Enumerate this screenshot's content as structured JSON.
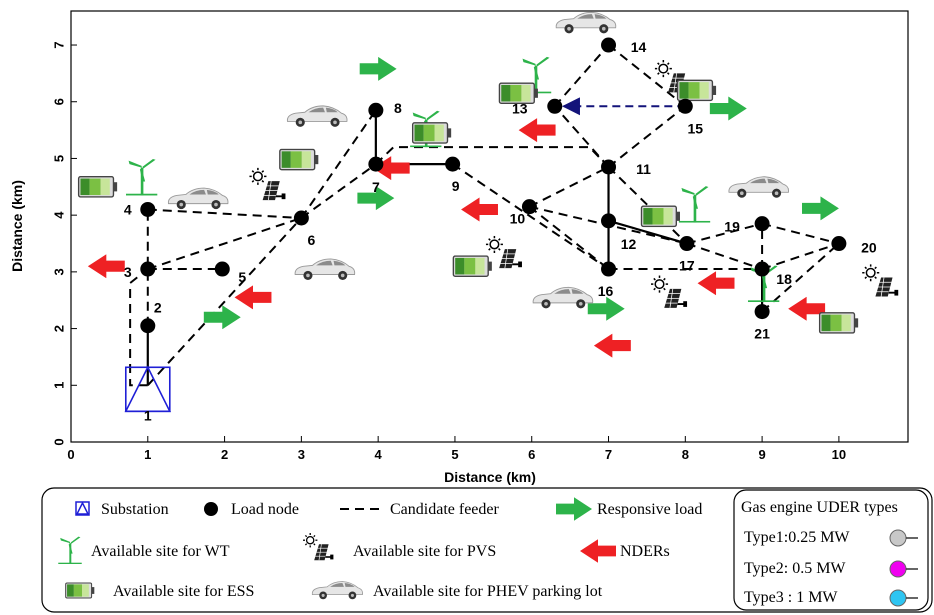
{
  "axes": {
    "xlabel": "Distance (km)",
    "ylabel": "Distance (km)",
    "xticks": [
      "0",
      "1",
      "2",
      "3",
      "4",
      "5",
      "6",
      "7",
      "8",
      "9",
      "10"
    ],
    "yticks": [
      "0",
      "1",
      "2",
      "3",
      "4",
      "5",
      "6",
      "7"
    ],
    "xlim": [
      0,
      10.9
    ],
    "ylim": [
      0,
      7.6
    ]
  },
  "nodes": [
    {
      "id": "1",
      "x": 1.0,
      "y": 1.0,
      "kind": "substation"
    },
    {
      "id": "2",
      "x": 1.0,
      "y": 2.05,
      "kind": "load"
    },
    {
      "id": "3",
      "x": 1.0,
      "y": 3.05,
      "kind": "load"
    },
    {
      "id": "4",
      "x": 1.0,
      "y": 4.1,
      "kind": "load"
    },
    {
      "id": "5",
      "x": 1.97,
      "y": 3.05,
      "kind": "load"
    },
    {
      "id": "6",
      "x": 3.0,
      "y": 3.95,
      "kind": "load"
    },
    {
      "id": "7",
      "x": 3.97,
      "y": 4.9,
      "kind": "load"
    },
    {
      "id": "8",
      "x": 3.97,
      "y": 5.85,
      "kind": "load"
    },
    {
      "id": "9",
      "x": 4.97,
      "y": 4.9,
      "kind": "load"
    },
    {
      "id": "10",
      "x": 5.97,
      "y": 4.15,
      "kind": "load"
    },
    {
      "id": "11",
      "x": 7.0,
      "y": 4.85,
      "kind": "load"
    },
    {
      "id": "12",
      "x": 7.0,
      "y": 3.9,
      "kind": "load"
    },
    {
      "id": "13",
      "x": 6.3,
      "y": 5.92,
      "kind": "load"
    },
    {
      "id": "14",
      "x": 7.0,
      "y": 7.0,
      "kind": "load"
    },
    {
      "id": "15",
      "x": 8.0,
      "y": 5.92,
      "kind": "load"
    },
    {
      "id": "16",
      "x": 7.0,
      "y": 3.05,
      "kind": "load"
    },
    {
      "id": "17",
      "x": 8.02,
      "y": 3.5,
      "kind": "load"
    },
    {
      "id": "18",
      "x": 9.0,
      "y": 3.05,
      "kind": "load"
    },
    {
      "id": "19",
      "x": 9.0,
      "y": 3.85,
      "kind": "load"
    },
    {
      "id": "20",
      "x": 10.0,
      "y": 3.5,
      "kind": "load"
    },
    {
      "id": "21",
      "x": 9.0,
      "y": 2.3,
      "kind": "load"
    }
  ],
  "feeders": [
    {
      "from": "1",
      "to": "2",
      "style": "solid"
    },
    {
      "from": "1",
      "to": "3",
      "style": "dashed",
      "via": "left"
    },
    {
      "from": "2",
      "to": "4",
      "style": "dashed"
    },
    {
      "from": "1",
      "to": "6",
      "style": "dashed"
    },
    {
      "from": "3",
      "to": "5",
      "style": "dashed"
    },
    {
      "from": "3",
      "to": "6",
      "style": "dashed"
    },
    {
      "from": "4",
      "to": "6",
      "style": "dashed"
    },
    {
      "from": "6",
      "to": "7",
      "style": "dashed"
    },
    {
      "from": "6",
      "to": "8",
      "style": "dashed"
    },
    {
      "from": "7",
      "to": "8",
      "style": "solid"
    },
    {
      "from": "7",
      "to": "9",
      "style": "solid"
    },
    {
      "from": "9",
      "to": "16",
      "style": "dashed"
    },
    {
      "from": "7",
      "to": "11",
      "style": "dashed",
      "via": "top"
    },
    {
      "from": "10",
      "to": "11",
      "style": "dashed"
    },
    {
      "from": "10",
      "to": "17",
      "style": "dashed"
    },
    {
      "from": "10",
      "to": "16",
      "style": "dashed"
    },
    {
      "from": "11",
      "to": "12",
      "style": "solid"
    },
    {
      "from": "12",
      "to": "16",
      "style": "solid"
    },
    {
      "from": "11",
      "to": "13",
      "style": "dashed"
    },
    {
      "from": "11",
      "to": "15",
      "style": "dashed"
    },
    {
      "from": "11",
      "to": "17",
      "style": "dashed"
    },
    {
      "from": "13",
      "to": "14",
      "style": "dashed"
    },
    {
      "from": "14",
      "to": "15",
      "style": "dashed"
    },
    {
      "from": "15",
      "to": "13",
      "style": "arrow-blue"
    },
    {
      "from": "12",
      "to": "17",
      "style": "solid"
    },
    {
      "from": "16",
      "to": "18",
      "style": "dashed"
    },
    {
      "from": "17",
      "to": "19",
      "style": "dashed"
    },
    {
      "from": "17",
      "to": "18",
      "style": "dashed"
    },
    {
      "from": "18",
      "to": "19",
      "style": "dashed"
    },
    {
      "from": "18",
      "to": "21",
      "style": "solid"
    },
    {
      "from": "19",
      "to": "20",
      "style": "dashed"
    },
    {
      "from": "18",
      "to": "20",
      "style": "dashed"
    },
    {
      "from": "21",
      "to": "20",
      "style": "dashed"
    }
  ],
  "symbols": {
    "responsive_load": [
      [
        4.0,
        6.58
      ],
      [
        3.97,
        4.3
      ],
      [
        1.97,
        2.2
      ],
      [
        6.97,
        2.35
      ],
      [
        8.56,
        5.88
      ],
      [
        9.76,
        4.12
      ]
    ],
    "nder": [
      [
        0.46,
        3.1
      ],
      [
        4.17,
        4.83
      ],
      [
        5.32,
        4.1
      ],
      [
        2.37,
        2.55
      ],
      [
        6.07,
        5.5
      ],
      [
        7.05,
        1.7
      ],
      [
        8.4,
        2.8
      ],
      [
        9.58,
        2.35
      ]
    ],
    "wt": [
      [
        0.92,
        4.7
      ],
      [
        4.62,
        5.55
      ],
      [
        6.05,
        6.5
      ],
      [
        8.12,
        4.22
      ],
      [
        9.02,
        2.82
      ]
    ],
    "pvs": [
      [
        2.57,
        4.5
      ],
      [
        5.65,
        3.3
      ],
      [
        7.85,
        6.4
      ],
      [
        7.8,
        2.6
      ],
      [
        10.55,
        2.8
      ]
    ],
    "ess": [
      [
        0.35,
        4.5
      ],
      [
        2.97,
        4.98
      ],
      [
        4.7,
        5.45
      ],
      [
        5.83,
        6.15
      ],
      [
        8.15,
        6.2
      ],
      [
        5.23,
        3.1
      ],
      [
        7.68,
        3.98
      ],
      [
        10.0,
        2.1
      ]
    ],
    "ev": [
      [
        1.65,
        4.3
      ],
      [
        3.2,
        5.75
      ],
      [
        3.3,
        3.05
      ],
      [
        6.4,
        2.55
      ],
      [
        6.7,
        7.4
      ],
      [
        8.95,
        4.5
      ]
    ]
  },
  "legend": {
    "substation": "Substation",
    "load_node": "Load node",
    "candidate_feeder": "Candidate feeder",
    "responsive_load": "Responsive load",
    "wt": "Available site for WT",
    "pvs": "Available site for PVS",
    "nders": "NDERs",
    "ess": "Available site for ESS",
    "phev": "Available site for PHEV parking lot",
    "gas_title": "Gas engine UDER types",
    "gas_types": [
      {
        "label": "Type1:0.25 MW",
        "color": "#c8c8c8"
      },
      {
        "label": "Type2: 0.5 MW",
        "color": "#f000f0"
      },
      {
        "label": "Type3 : 1 MW",
        "color": "#2ec5f2"
      }
    ]
  },
  "colors": {
    "responsive": "#2db34a",
    "nder": "#ee2124",
    "substation": "#1f1fd6",
    "arrow": "#13137a"
  }
}
